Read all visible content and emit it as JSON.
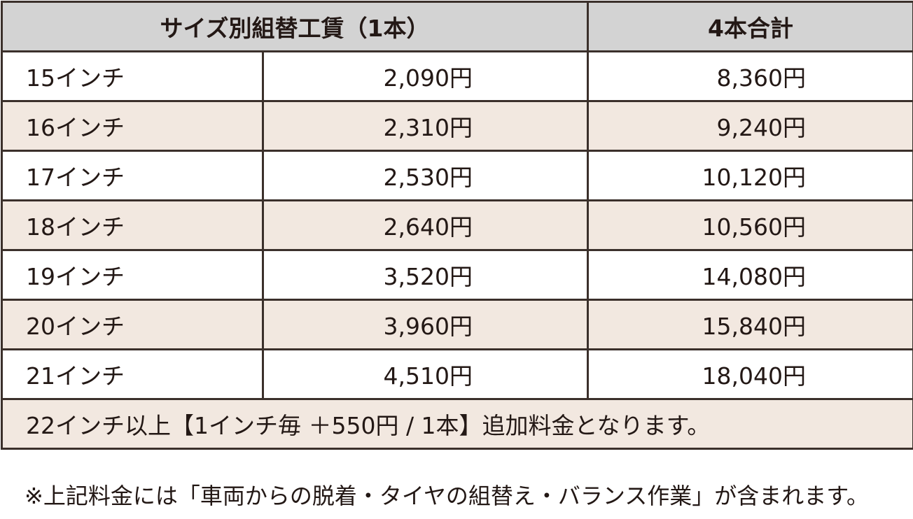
{
  "table": {
    "header": [
      "サイズ別組替工賃（1本）",
      "4本合計"
    ],
    "rows": [
      [
        "15インチ",
        "2,090円",
        "8,360円"
      ],
      [
        "16インチ",
        "2,310円",
        "9,240円"
      ],
      [
        "17インチ",
        "2,530円",
        "10,120円"
      ],
      [
        "18インチ",
        "2,640円",
        "10,560円"
      ],
      [
        "19インチ",
        "3,520円",
        "14,080円"
      ],
      [
        "20インチ",
        "3,960円",
        "15,840円"
      ],
      [
        "21インチ",
        "4,510円",
        "18,040円"
      ]
    ],
    "footer": "22インチ以上【1インチ毎 ＋550円 / 1本】追加料金となります。"
  },
  "note": "※上記料金には「車両からの脱着・タイヤの組替え・バランス作業」が含まれます。"
}
